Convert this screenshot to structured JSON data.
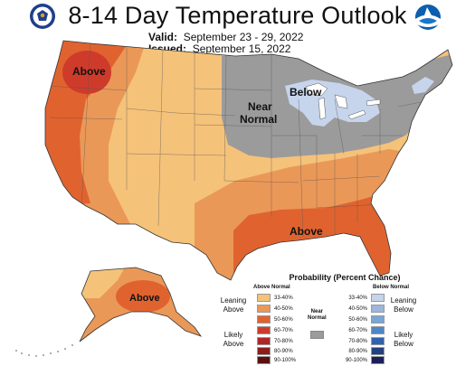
{
  "header": {
    "title": "8-14 Day Temperature Outlook",
    "valid_label": "Valid:",
    "valid_value": "September 23 - 29, 2022",
    "issued_label": "Issued:",
    "issued_value": "September 15, 2022"
  },
  "logos": {
    "left": "department-of-commerce-seal-icon",
    "right": "noaa-logo-icon"
  },
  "map_labels": {
    "northwest": "Above",
    "near_normal_1": "Near",
    "near_normal_2": "Normal",
    "northeast": "Below",
    "southeast": "Above",
    "alaska": "Above"
  },
  "colors": {
    "above_33_40": "#f5c27a",
    "above_40_50": "#ea9858",
    "above_50_60": "#e0632f",
    "above_60_70": "#cf3b2b",
    "above_70_80": "#b02525",
    "above_80_90": "#8c1d1d",
    "above_90_100": "#5a1010",
    "near_normal": "#9b9b9b",
    "below_33_40": "#c6d4ec",
    "below_40_50": "#9bb6df",
    "below_50_60": "#78a6d6",
    "below_60_70": "#4f86c6",
    "below_70_80": "#2f63b0",
    "below_80_90": "#23407f",
    "below_90_100": "#1b2058"
  },
  "legend": {
    "title": "Probability (Percent Chance)",
    "above_header": "Above Normal",
    "below_header": "Below Normal",
    "near_normal_1": "Near",
    "near_normal_2": "Normal",
    "leaning_above_1": "Leaning",
    "leaning_above_2": "Above",
    "likely_above_1": "Likely",
    "likely_above_2": "Above",
    "leaning_below_1": "Leaning",
    "leaning_below_2": "Below",
    "likely_below_1": "Likely",
    "likely_below_2": "Below",
    "above_ranges": [
      "33-40%",
      "40-50%",
      "50-60%",
      "60-70%",
      "70-80%",
      "80-90%",
      "90-100%"
    ],
    "below_ranges": [
      "33-40%",
      "40-50%",
      "50-60%",
      "60-70%",
      "70-80%",
      "80-90%",
      "90-100%"
    ]
  }
}
